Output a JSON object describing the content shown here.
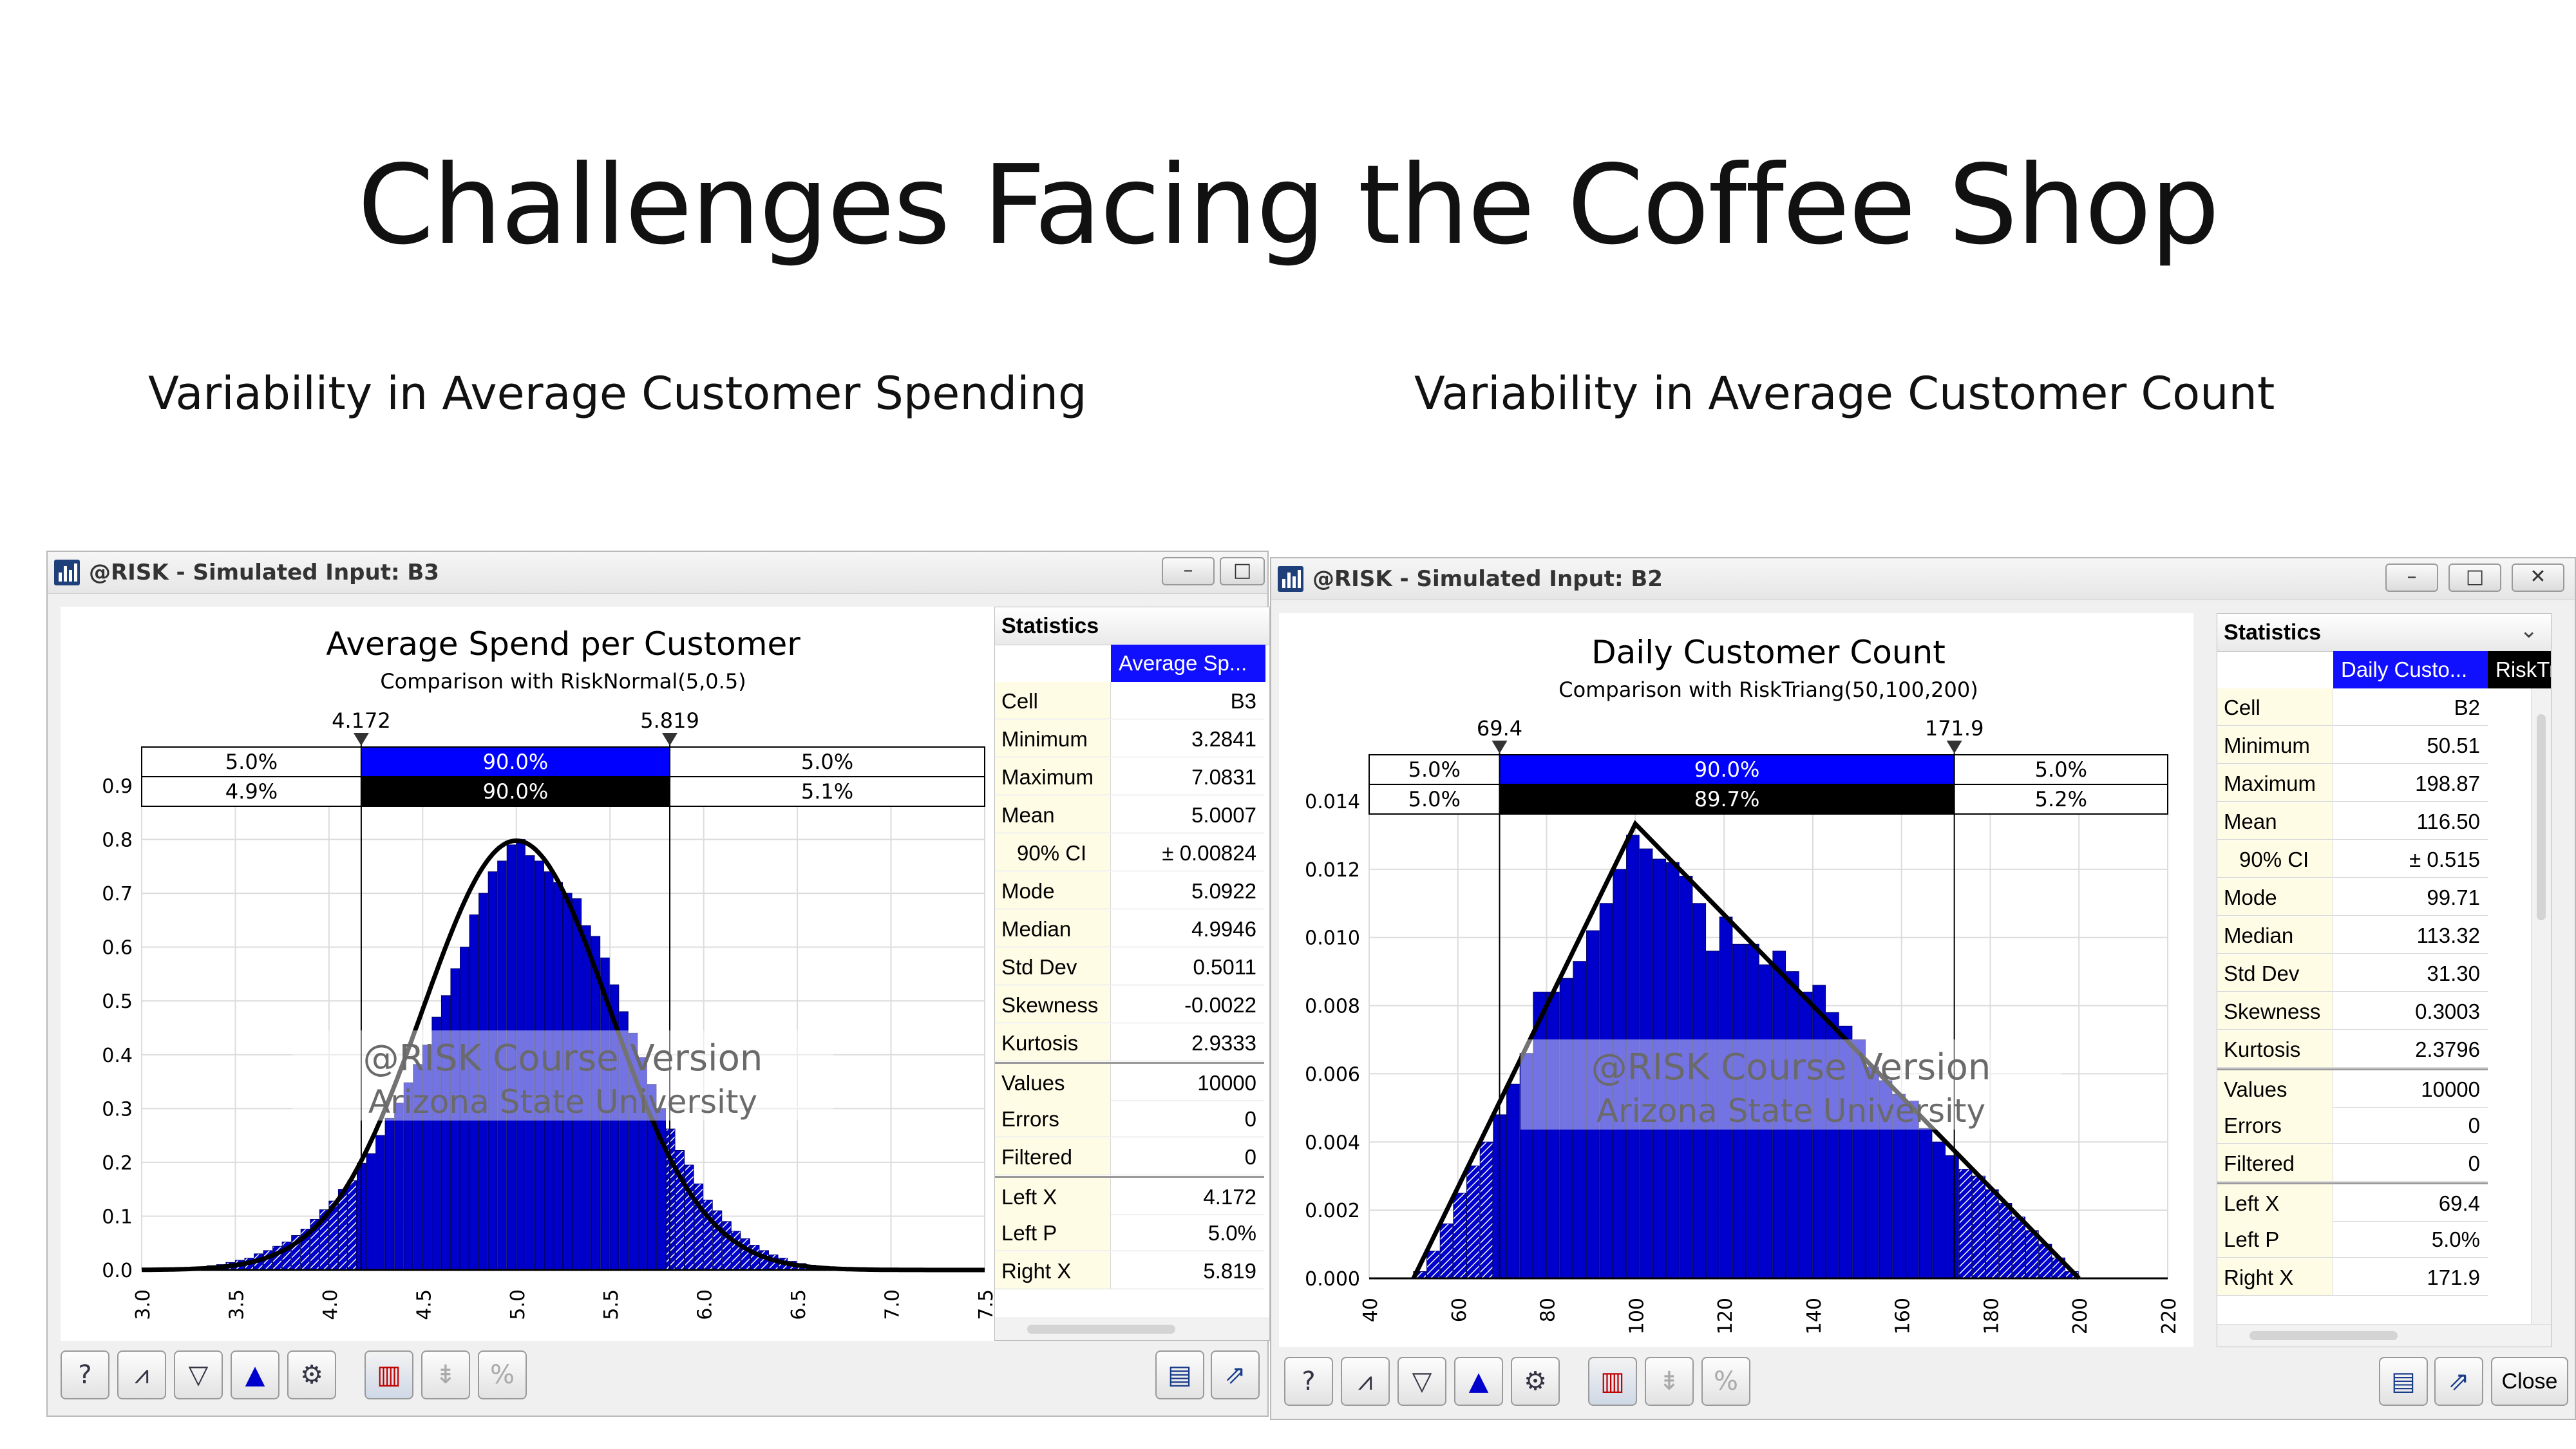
{
  "slide": {
    "title": "Challenges Facing the Coffee Shop",
    "subtitle_left": "Variability in Average Customer Spending",
    "subtitle_right": "Variability in Average Customer Count"
  },
  "watermark": {
    "line1": "@RISK Course Version",
    "line2": "Arizona State University"
  },
  "colors": {
    "bar": "#0000cc",
    "band_top": "#0000ff",
    "band_bottom": "#000000",
    "stats_header": "#1010ff"
  },
  "windows": [
    {
      "title": "@RISK - Simulated Input: B3",
      "buttons": [
        "–",
        "□"
      ],
      "stats": {
        "header": "Statistics",
        "column": "Average Sp...",
        "extra_column": "",
        "rows": [
          {
            "k": "Cell",
            "v": "B3"
          },
          {
            "k": "Minimum",
            "v": "3.2841"
          },
          {
            "k": "Maximum",
            "v": "7.0831"
          },
          {
            "k": "Mean",
            "v": "5.0007"
          },
          {
            "k": "90% CI",
            "v": "± 0.00824"
          },
          {
            "k": "Mode",
            "v": "5.0922"
          },
          {
            "k": "Median",
            "v": "4.9946"
          },
          {
            "k": "Std Dev",
            "v": "0.5011"
          },
          {
            "k": "Skewness",
            "v": "-0.0022"
          },
          {
            "k": "Kurtosis",
            "v": "2.9333"
          },
          {
            "k": "Values",
            "v": "10000"
          },
          {
            "k": "Errors",
            "v": "0"
          },
          {
            "k": "Filtered",
            "v": "0"
          },
          {
            "k": "Left X",
            "v": "4.172"
          },
          {
            "k": "Left P",
            "v": "5.0%"
          },
          {
            "k": "Right X",
            "v": "5.819"
          }
        ]
      },
      "toolbar_icons": [
        "help-icon",
        "distribution-icon",
        "filter-icon",
        "overlay-icon",
        "settings-icon",
        "histogram-icon",
        "tornado-icon",
        "percent-icon"
      ],
      "toolbar_right_icons": [
        "graph-report-icon",
        "export-icon"
      ],
      "close_label": ""
    },
    {
      "title": "@RISK - Simulated Input: B2",
      "buttons": [
        "–",
        "□",
        "✕"
      ],
      "stats": {
        "header": "Statistics",
        "column": "Daily Custo...",
        "extra_column": "RiskTri",
        "rows": [
          {
            "k": "Cell",
            "v": "B2"
          },
          {
            "k": "Minimum",
            "v": "50.51"
          },
          {
            "k": "Maximum",
            "v": "198.87"
          },
          {
            "k": "Mean",
            "v": "116.50"
          },
          {
            "k": "90% CI",
            "v": "± 0.515"
          },
          {
            "k": "Mode",
            "v": "99.71"
          },
          {
            "k": "Median",
            "v": "113.32"
          },
          {
            "k": "Std Dev",
            "v": "31.30"
          },
          {
            "k": "Skewness",
            "v": "0.3003"
          },
          {
            "k": "Kurtosis",
            "v": "2.3796"
          },
          {
            "k": "Values",
            "v": "10000"
          },
          {
            "k": "Errors",
            "v": "0"
          },
          {
            "k": "Filtered",
            "v": "0"
          },
          {
            "k": "Left X",
            "v": "69.4"
          },
          {
            "k": "Left P",
            "v": "5.0%"
          },
          {
            "k": "Right X",
            "v": "171.9"
          }
        ]
      },
      "toolbar_icons": [
        "help-icon",
        "distribution-icon",
        "filter-icon",
        "overlay-icon",
        "settings-icon",
        "histogram-icon",
        "tornado-icon",
        "percent-icon"
      ],
      "toolbar_right_icons": [
        "graph-report-icon",
        "export-icon"
      ],
      "close_label": "Close"
    }
  ],
  "chart_data": [
    {
      "type": "bar",
      "title": "Average Spend per Customer",
      "subtitle": "Comparison with RiskNormal(5,0.5)",
      "xlim": [
        3.0,
        7.5
      ],
      "ylim": [
        0.0,
        0.9
      ],
      "x_ticks": [
        "3.0",
        "3.5",
        "4.0",
        "4.5",
        "5.0",
        "5.5",
        "6.0",
        "6.5",
        "7.0",
        "7.5"
      ],
      "y_ticks": [
        "0.0",
        "0.1",
        "0.2",
        "0.3",
        "0.4",
        "0.5",
        "0.6",
        "0.7",
        "0.8",
        "0.9"
      ],
      "delimiters": {
        "left": 4.172,
        "right": 5.819,
        "left_label": "4.172",
        "right_label": "5.819"
      },
      "band_top": [
        "5.0%",
        "90.0%",
        "5.0%"
      ],
      "band_bottom": [
        "4.9%",
        "90.0%",
        "5.1%"
      ],
      "bin_width": 0.05,
      "bins": [
        [
          3.3,
          0.006
        ],
        [
          3.35,
          0.008
        ],
        [
          3.4,
          0.01
        ],
        [
          3.45,
          0.014
        ],
        [
          3.5,
          0.018
        ],
        [
          3.55,
          0.022
        ],
        [
          3.6,
          0.03
        ],
        [
          3.65,
          0.036
        ],
        [
          3.7,
          0.044
        ],
        [
          3.75,
          0.052
        ],
        [
          3.8,
          0.064
        ],
        [
          3.85,
          0.076
        ],
        [
          3.9,
          0.094
        ],
        [
          3.95,
          0.112
        ],
        [
          4.0,
          0.128
        ],
        [
          4.05,
          0.15
        ],
        [
          4.1,
          0.166
        ],
        [
          4.15,
          0.198
        ],
        [
          4.2,
          0.216
        ],
        [
          4.25,
          0.25
        ],
        [
          4.3,
          0.282
        ],
        [
          4.35,
          0.31
        ],
        [
          4.4,
          0.348
        ],
        [
          4.45,
          0.382
        ],
        [
          4.5,
          0.418
        ],
        [
          4.55,
          0.47
        ],
        [
          4.6,
          0.51
        ],
        [
          4.65,
          0.56
        ],
        [
          4.7,
          0.6
        ],
        [
          4.75,
          0.66
        ],
        [
          4.8,
          0.7
        ],
        [
          4.85,
          0.74
        ],
        [
          4.9,
          0.76
        ],
        [
          4.95,
          0.79
        ],
        [
          5.0,
          0.8
        ],
        [
          5.05,
          0.77
        ],
        [
          5.1,
          0.76
        ],
        [
          5.15,
          0.74
        ],
        [
          5.2,
          0.72
        ],
        [
          5.25,
          0.7
        ],
        [
          5.3,
          0.69
        ],
        [
          5.35,
          0.64
        ],
        [
          5.4,
          0.62
        ],
        [
          5.45,
          0.58
        ],
        [
          5.5,
          0.53
        ],
        [
          5.55,
          0.48
        ],
        [
          5.6,
          0.44
        ],
        [
          5.65,
          0.395
        ],
        [
          5.7,
          0.345
        ],
        [
          5.75,
          0.3
        ],
        [
          5.8,
          0.262
        ],
        [
          5.85,
          0.222
        ],
        [
          5.9,
          0.195
        ],
        [
          5.95,
          0.16
        ],
        [
          6.0,
          0.13
        ],
        [
          6.05,
          0.11
        ],
        [
          6.1,
          0.09
        ],
        [
          6.15,
          0.072
        ],
        [
          6.2,
          0.058
        ],
        [
          6.25,
          0.046
        ],
        [
          6.3,
          0.036
        ],
        [
          6.35,
          0.028
        ],
        [
          6.4,
          0.022
        ],
        [
          6.45,
          0.016
        ],
        [
          6.5,
          0.012
        ],
        [
          6.55,
          0.009
        ],
        [
          6.6,
          0.007
        ],
        [
          6.65,
          0.005
        ],
        [
          6.7,
          0.004
        ],
        [
          6.75,
          0.003
        ],
        [
          6.8,
          0.002
        ]
      ],
      "fit": {
        "type": "normal",
        "mean": 5,
        "sd": 0.5
      }
    },
    {
      "type": "bar",
      "title": "Daily Customer Count",
      "subtitle": "Comparison with RiskTriang(50,100,200)",
      "xlim": [
        40,
        220
      ],
      "ylim": [
        0.0,
        0.014
      ],
      "x_ticks": [
        "40",
        "60",
        "80",
        "100",
        "120",
        "140",
        "160",
        "180",
        "200",
        "220"
      ],
      "y_ticks": [
        "0.000",
        "0.002",
        "0.004",
        "0.006",
        "0.008",
        "0.010",
        "0.012",
        "0.014"
      ],
      "delimiters": {
        "left": 69.4,
        "right": 171.9,
        "left_label": "69.4",
        "right_label": "171.9"
      },
      "band_top": [
        "5.0%",
        "90.0%",
        "5.0%"
      ],
      "band_bottom": [
        "5.0%",
        "89.7%",
        "5.2%"
      ],
      "bin_width": 3,
      "bins": [
        [
          50,
          0.0002
        ],
        [
          53,
          0.0008
        ],
        [
          56,
          0.0016
        ],
        [
          59,
          0.0025
        ],
        [
          62,
          0.0033
        ],
        [
          65,
          0.004
        ],
        [
          68,
          0.0048
        ],
        [
          71,
          0.0057
        ],
        [
          74,
          0.0066
        ],
        [
          77,
          0.0084
        ],
        [
          80,
          0.0084
        ],
        [
          83,
          0.0088
        ],
        [
          86,
          0.0093
        ],
        [
          89,
          0.0102
        ],
        [
          92,
          0.011
        ],
        [
          95,
          0.012
        ],
        [
          98,
          0.013
        ],
        [
          101,
          0.0126
        ],
        [
          104,
          0.0123
        ],
        [
          107,
          0.0122
        ],
        [
          110,
          0.0118
        ],
        [
          113,
          0.011
        ],
        [
          116,
          0.0096
        ],
        [
          119,
          0.0106
        ],
        [
          122,
          0.0098
        ],
        [
          125,
          0.0098
        ],
        [
          128,
          0.0092
        ],
        [
          131,
          0.0096
        ],
        [
          134,
          0.009
        ],
        [
          137,
          0.0084
        ],
        [
          140,
          0.0086
        ],
        [
          143,
          0.0078
        ],
        [
          146,
          0.0074
        ],
        [
          149,
          0.007
        ],
        [
          152,
          0.0062
        ],
        [
          155,
          0.0058
        ],
        [
          158,
          0.0054
        ],
        [
          161,
          0.0052
        ],
        [
          164,
          0.0044
        ],
        [
          167,
          0.004
        ],
        [
          170,
          0.0036
        ],
        [
          173,
          0.0032
        ],
        [
          176,
          0.003
        ],
        [
          179,
          0.0026
        ],
        [
          182,
          0.0022
        ],
        [
          185,
          0.0018
        ],
        [
          188,
          0.0014
        ],
        [
          191,
          0.001
        ],
        [
          194,
          0.0006
        ],
        [
          197,
          0.0002
        ]
      ],
      "fit": {
        "type": "triangular",
        "min": 50,
        "mode": 100,
        "max": 200
      }
    }
  ]
}
